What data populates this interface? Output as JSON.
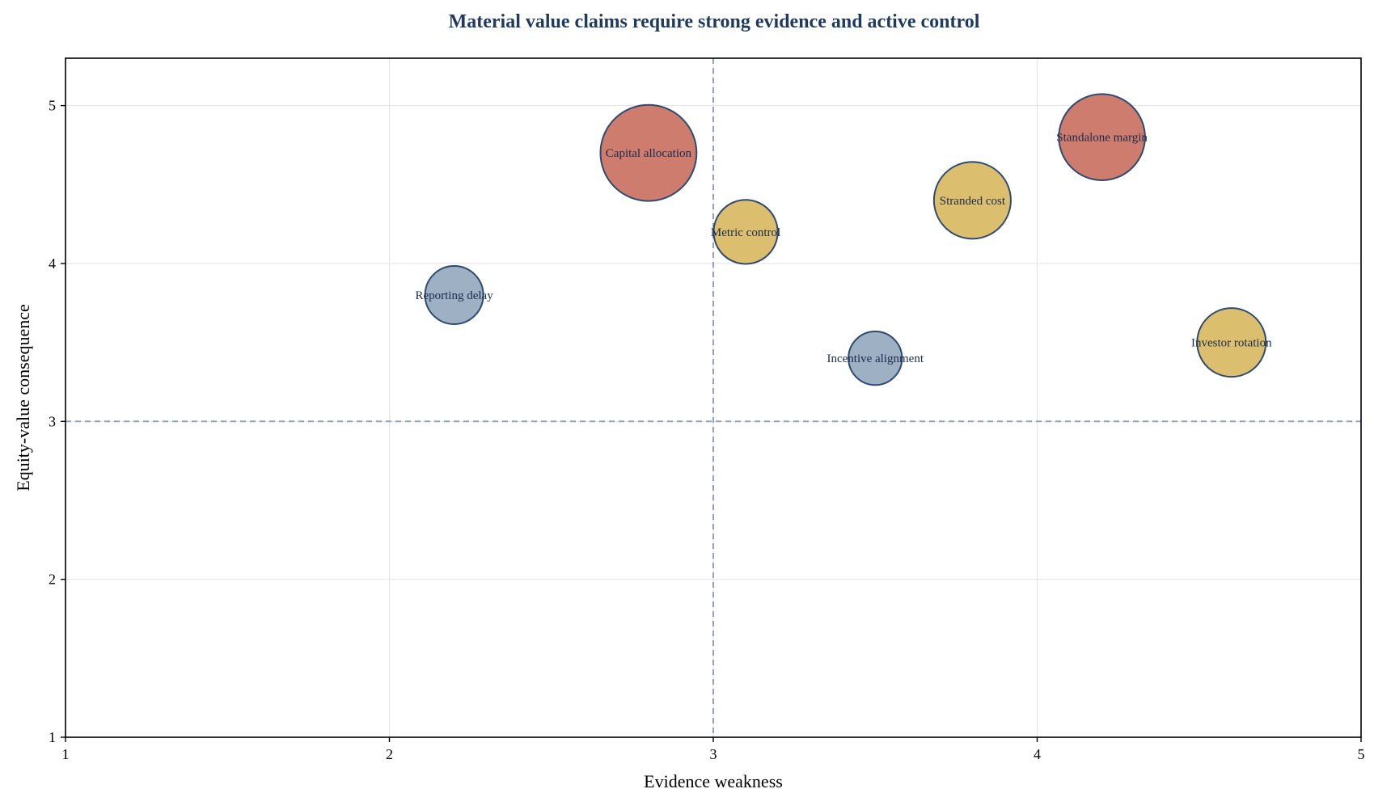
{
  "chart_data": {
    "type": "scatter",
    "title": "Material value claims require strong evidence and active control",
    "xlabel": "Evidence weakness",
    "ylabel": "Equity-value consequence",
    "xlim": [
      1,
      5
    ],
    "ylim": [
      1,
      5.3
    ],
    "xticks": [
      "1",
      "2",
      "3",
      "4",
      "5"
    ],
    "yticks": [
      "1",
      "2",
      "3",
      "4",
      "5"
    ],
    "grid": true,
    "reference_lines": {
      "x": 3,
      "y": 3
    },
    "colors": {
      "title": "#1f3a5f",
      "high": "#cd7c6e",
      "medium": "#dcbf6e",
      "low": "#9eb0c3",
      "bubble_edge": "#2e4a70",
      "reference_line": "#8ea3bc",
      "grid": "#e3e3e3"
    },
    "points": [
      {
        "label": "Reporting delay",
        "x": 2.2,
        "y": 3.8,
        "size": 1.0,
        "level": "low"
      },
      {
        "label": "Capital allocation",
        "x": 2.8,
        "y": 4.7,
        "size": 1.65,
        "level": "high"
      },
      {
        "label": "Metric control",
        "x": 3.1,
        "y": 4.2,
        "size": 1.1,
        "level": "medium"
      },
      {
        "label": "Incentive alignment",
        "x": 3.5,
        "y": 3.4,
        "size": 0.92,
        "level": "low"
      },
      {
        "label": "Stranded cost",
        "x": 3.8,
        "y": 4.4,
        "size": 1.32,
        "level": "medium"
      },
      {
        "label": "Standalone margin",
        "x": 4.2,
        "y": 4.8,
        "size": 1.48,
        "level": "high"
      },
      {
        "label": "Investor rotation",
        "x": 4.6,
        "y": 3.5,
        "size": 1.18,
        "level": "medium"
      }
    ]
  }
}
